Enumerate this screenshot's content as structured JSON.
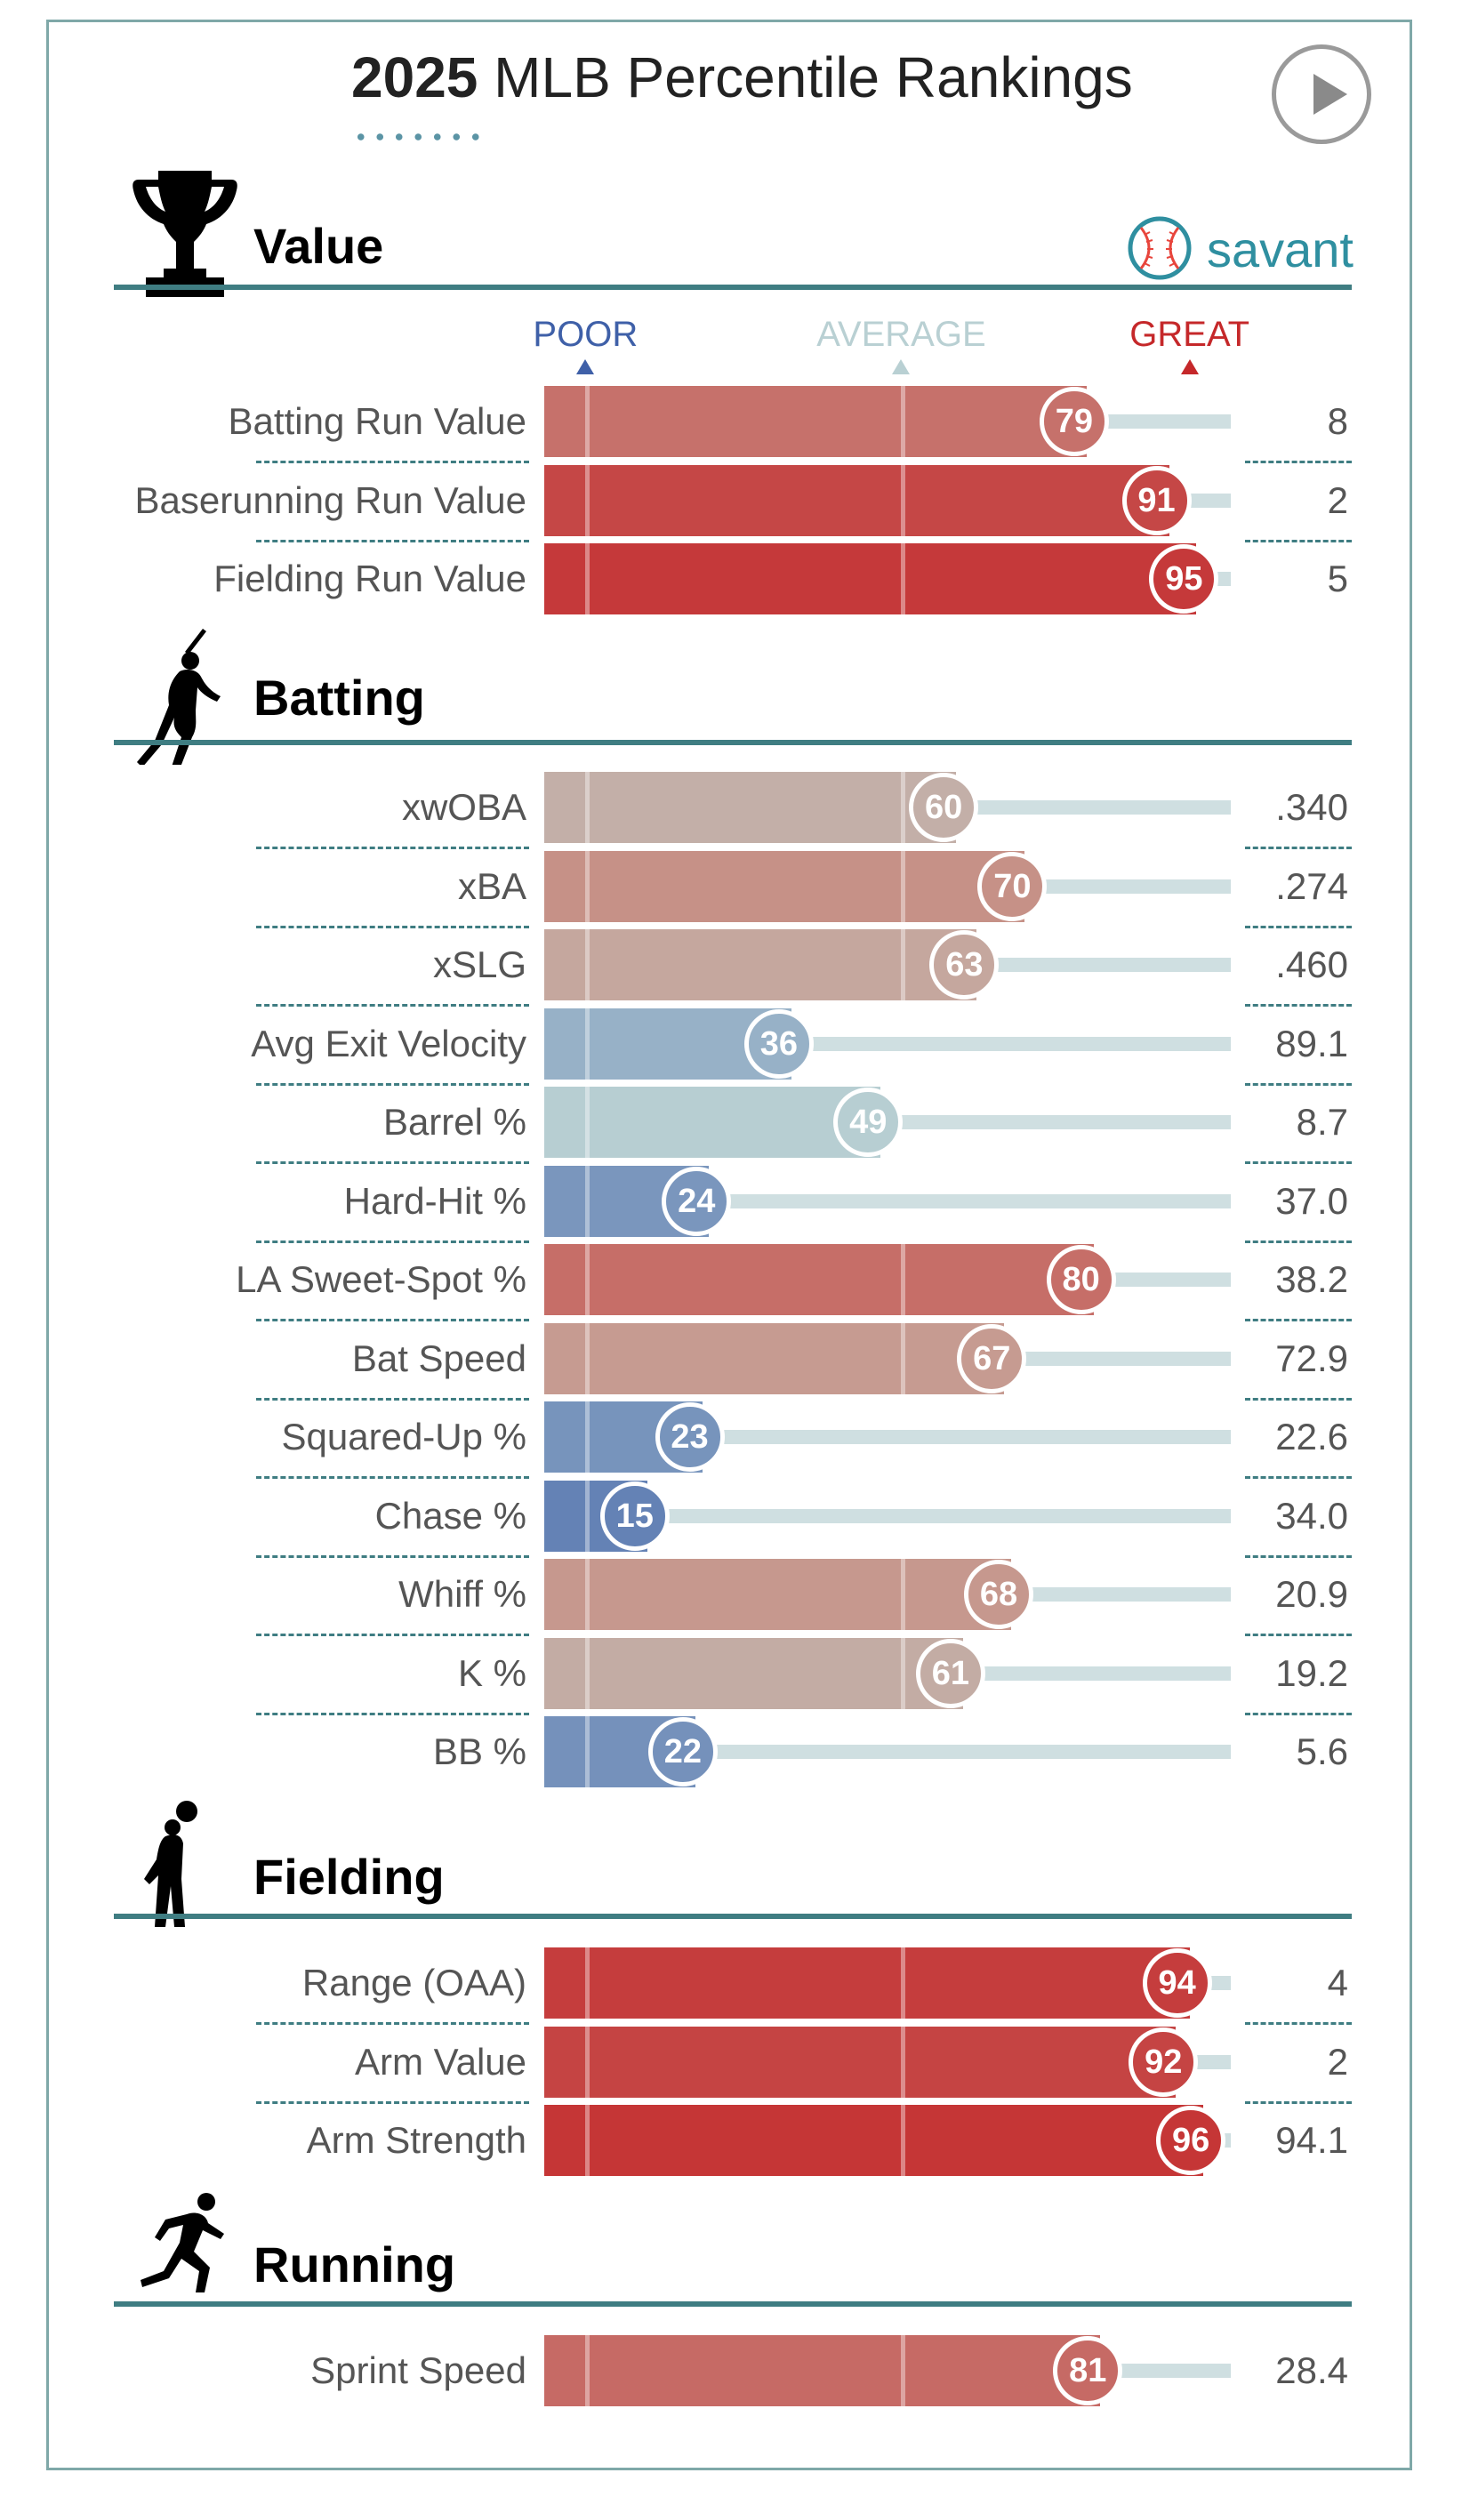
{
  "title": {
    "year": "2025",
    "text": "MLB Percentile Rankings"
  },
  "logo": {
    "text": "savant"
  },
  "scale": {
    "poor": "POOR",
    "average": "AVERAGE",
    "great": "GREAT"
  },
  "colors": {
    "poor": "#3f60a8",
    "average": "#b9d0d3",
    "great": "#c5282a",
    "neutral": "#bfbbb8",
    "track": "#cfdfe1",
    "rule": "#3f7d82"
  },
  "chart_data": {
    "type": "bar",
    "orientation": "horizontal",
    "xlim": [
      0,
      100
    ],
    "title": "2025 MLB Percentile Rankings",
    "sections": [
      {
        "name": "Value",
        "icon": "trophy-icon",
        "metrics": [
          {
            "label": "Batting Run Value",
            "percentile": 79,
            "value": "8"
          },
          {
            "label": "Baserunning Run Value",
            "percentile": 91,
            "value": "2"
          },
          {
            "label": "Fielding Run Value",
            "percentile": 95,
            "value": "5"
          }
        ]
      },
      {
        "name": "Batting",
        "icon": "batter-icon",
        "metrics": [
          {
            "label": "xwOBA",
            "percentile": 60,
            "value": ".340"
          },
          {
            "label": "xBA",
            "percentile": 70,
            "value": ".274"
          },
          {
            "label": "xSLG",
            "percentile": 63,
            "value": ".460"
          },
          {
            "label": "Avg Exit Velocity",
            "percentile": 36,
            "value": "89.1"
          },
          {
            "label": "Barrel %",
            "percentile": 49,
            "value": "8.7"
          },
          {
            "label": "Hard-Hit %",
            "percentile": 24,
            "value": "37.0"
          },
          {
            "label": "LA Sweet-Spot %",
            "percentile": 80,
            "value": "38.2"
          },
          {
            "label": "Bat Speed",
            "percentile": 67,
            "value": "72.9"
          },
          {
            "label": "Squared-Up %",
            "percentile": 23,
            "value": "22.6"
          },
          {
            "label": "Chase %",
            "percentile": 15,
            "value": "34.0"
          },
          {
            "label": "Whiff %",
            "percentile": 68,
            "value": "20.9"
          },
          {
            "label": "K %",
            "percentile": 61,
            "value": "19.2"
          },
          {
            "label": "BB %",
            "percentile": 22,
            "value": "5.6"
          }
        ]
      },
      {
        "name": "Fielding",
        "icon": "fielder-icon",
        "metrics": [
          {
            "label": "Range (OAA)",
            "percentile": 94,
            "value": "4"
          },
          {
            "label": "Arm Value",
            "percentile": 92,
            "value": "2"
          },
          {
            "label": "Arm Strength",
            "percentile": 96,
            "value": "94.1"
          }
        ]
      },
      {
        "name": "Running",
        "icon": "runner-icon",
        "metrics": [
          {
            "label": "Sprint Speed",
            "percentile": 81,
            "value": "28.4"
          }
        ]
      }
    ]
  }
}
